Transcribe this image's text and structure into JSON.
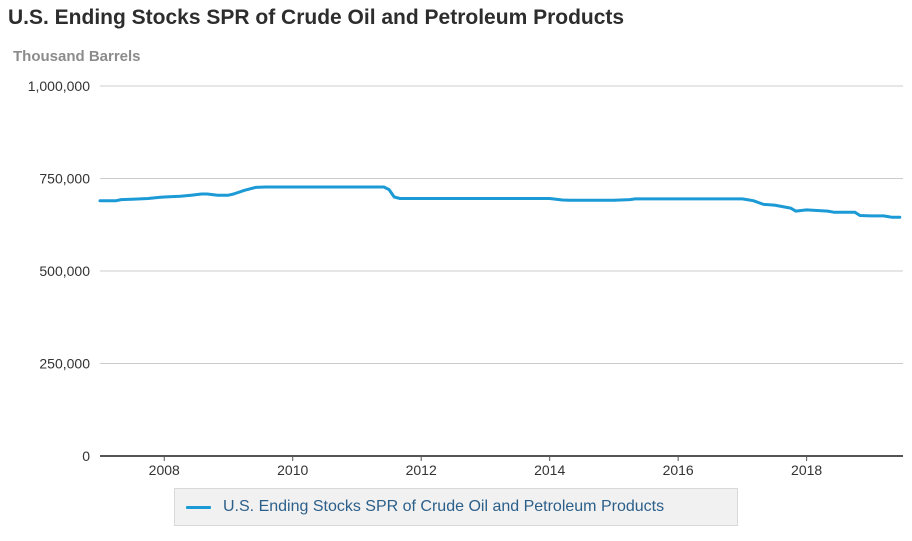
{
  "colors": {
    "series": "#1b9ad6",
    "grid": "#cccccc",
    "axis": "#555555"
  },
  "chart_data": {
    "type": "line",
    "title": "U.S. Ending Stocks SPR of Crude Oil and Petroleum Products",
    "ylabel": "Thousand Barrels",
    "xlabel": "",
    "ylim": [
      0,
      1000000
    ],
    "xlim": [
      2007.0,
      2019.5
    ],
    "y_ticks": [
      {
        "value": 0,
        "label": "0"
      },
      {
        "value": 250000,
        "label": "250,000"
      },
      {
        "value": 500000,
        "label": "500,000"
      },
      {
        "value": 750000,
        "label": "750,000"
      },
      {
        "value": 1000000,
        "label": "1,000,000"
      }
    ],
    "x_ticks": [
      {
        "value": 2008,
        "label": "2008"
      },
      {
        "value": 2010,
        "label": "2010"
      },
      {
        "value": 2012,
        "label": "2012"
      },
      {
        "value": 2014,
        "label": "2014"
      },
      {
        "value": 2016,
        "label": "2016"
      },
      {
        "value": 2018,
        "label": "2018"
      }
    ],
    "grid": true,
    "legend_position": "bottom",
    "series": [
      {
        "name": "U.S. Ending Stocks SPR of Crude Oil and Petroleum Products",
        "x": [
          2007.0,
          2007.25,
          2007.33,
          2007.5,
          2007.75,
          2007.92,
          2008.0,
          2008.25,
          2008.42,
          2008.58,
          2008.67,
          2008.83,
          2009.0,
          2009.08,
          2009.25,
          2009.42,
          2009.58,
          2009.75,
          2010.0,
          2010.5,
          2011.0,
          2011.25,
          2011.42,
          2011.5,
          2011.58,
          2011.67,
          2012.0,
          2013.0,
          2014.0,
          2014.2,
          2014.3,
          2015.0,
          2015.25,
          2015.33,
          2015.5,
          2016.0,
          2016.5,
          2017.0,
          2017.17,
          2017.33,
          2017.5,
          2017.75,
          2017.83,
          2018.0,
          2018.33,
          2018.42,
          2018.75,
          2018.83,
          2019.0,
          2019.2,
          2019.33,
          2019.45
        ],
        "y": [
          690000,
          690000,
          693000,
          694000,
          696000,
          699000,
          700000,
          702000,
          705000,
          708000,
          708000,
          705000,
          705000,
          708000,
          718000,
          726000,
          727000,
          727000,
          727000,
          727000,
          727000,
          727000,
          727000,
          720000,
          700000,
          696000,
          696000,
          696000,
          696000,
          692000,
          691000,
          691000,
          693000,
          695000,
          695000,
          695000,
          695000,
          695000,
          690000,
          680000,
          678000,
          670000,
          662000,
          665000,
          662000,
          659000,
          659000,
          650000,
          649000,
          649000,
          645000,
          645000
        ]
      }
    ]
  }
}
